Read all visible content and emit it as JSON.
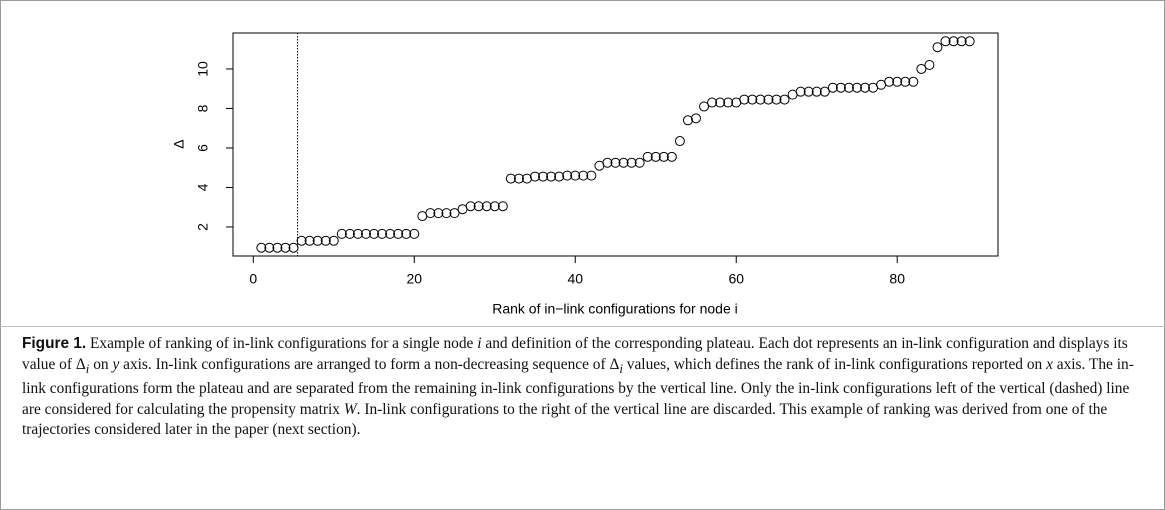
{
  "chart_data": {
    "type": "scatter",
    "xlabel": "Rank of in−link configurations for node i",
    "ylabel": "Δ",
    "x": [
      1,
      2,
      3,
      4,
      5,
      6,
      7,
      8,
      9,
      10,
      11,
      12,
      13,
      14,
      15,
      16,
      17,
      18,
      19,
      20,
      21,
      22,
      23,
      24,
      25,
      26,
      27,
      28,
      29,
      30,
      31,
      32,
      33,
      34,
      35,
      36,
      37,
      38,
      39,
      40,
      41,
      42,
      43,
      44,
      45,
      46,
      47,
      48,
      49,
      50,
      51,
      52,
      53,
      54,
      55,
      56,
      57,
      58,
      59,
      60,
      61,
      62,
      63,
      64,
      65,
      66,
      67,
      68,
      69,
      70,
      71,
      72,
      73,
      74,
      75,
      76,
      77,
      78,
      79,
      80,
      81,
      82,
      83,
      84,
      85,
      86,
      87,
      88,
      89
    ],
    "values": [
      0.95,
      0.95,
      0.95,
      0.95,
      0.95,
      1.3,
      1.3,
      1.3,
      1.3,
      1.3,
      1.65,
      1.65,
      1.65,
      1.65,
      1.65,
      1.65,
      1.65,
      1.65,
      1.65,
      1.65,
      2.55,
      2.7,
      2.7,
      2.7,
      2.7,
      2.9,
      3.05,
      3.05,
      3.05,
      3.05,
      3.05,
      4.45,
      4.45,
      4.45,
      4.55,
      4.55,
      4.55,
      4.55,
      4.6,
      4.6,
      4.6,
      4.6,
      5.1,
      5.25,
      5.25,
      5.25,
      5.25,
      5.25,
      5.55,
      5.55,
      5.55,
      5.55,
      6.35,
      7.4,
      7.5,
      8.1,
      8.3,
      8.3,
      8.3,
      8.3,
      8.45,
      8.45,
      8.45,
      8.45,
      8.45,
      8.45,
      8.7,
      8.85,
      8.85,
      8.85,
      8.85,
      9.05,
      9.05,
      9.05,
      9.05,
      9.05,
      9.05,
      9.2,
      9.35,
      9.35,
      9.35,
      9.35,
      10.0,
      10.2,
      11.1,
      11.4,
      11.4,
      11.4,
      11.4
    ],
    "color": "#000000",
    "vline": 5.5,
    "xlim": [
      -2.52,
      92.52
    ],
    "xticks": [
      0,
      20,
      40,
      60,
      80
    ],
    "ylim": [
      0.53,
      11.82
    ],
    "yticks": [
      2,
      4,
      6,
      8,
      10
    ]
  },
  "caption": {
    "label": "Figure 1.",
    "parts": [
      "Example of ranking of in-link configurations for a single node ",
      "i",
      " and definition of the corresponding plateau. Each dot represents an in-link configuration and displays its value of ",
      "Δ",
      "i",
      " on ",
      "y",
      " axis. In-link configurations are arranged to form a non-decreasing sequence of ",
      "Δ",
      "i",
      " values, which defines the rank of in-link configurations reported on ",
      "x",
      " axis. The in-link configurations form the plateau and are separated from the remaining in-link configurations by the vertical line. Only the in-link configurations left of the vertical (dashed) line are considered for calculating the propensity matrix ",
      "W",
      ". In-link configurations to the right of the vertical line are discarded. This example of ranking was derived from one of the trajectories considered later in the paper (next section)."
    ]
  }
}
